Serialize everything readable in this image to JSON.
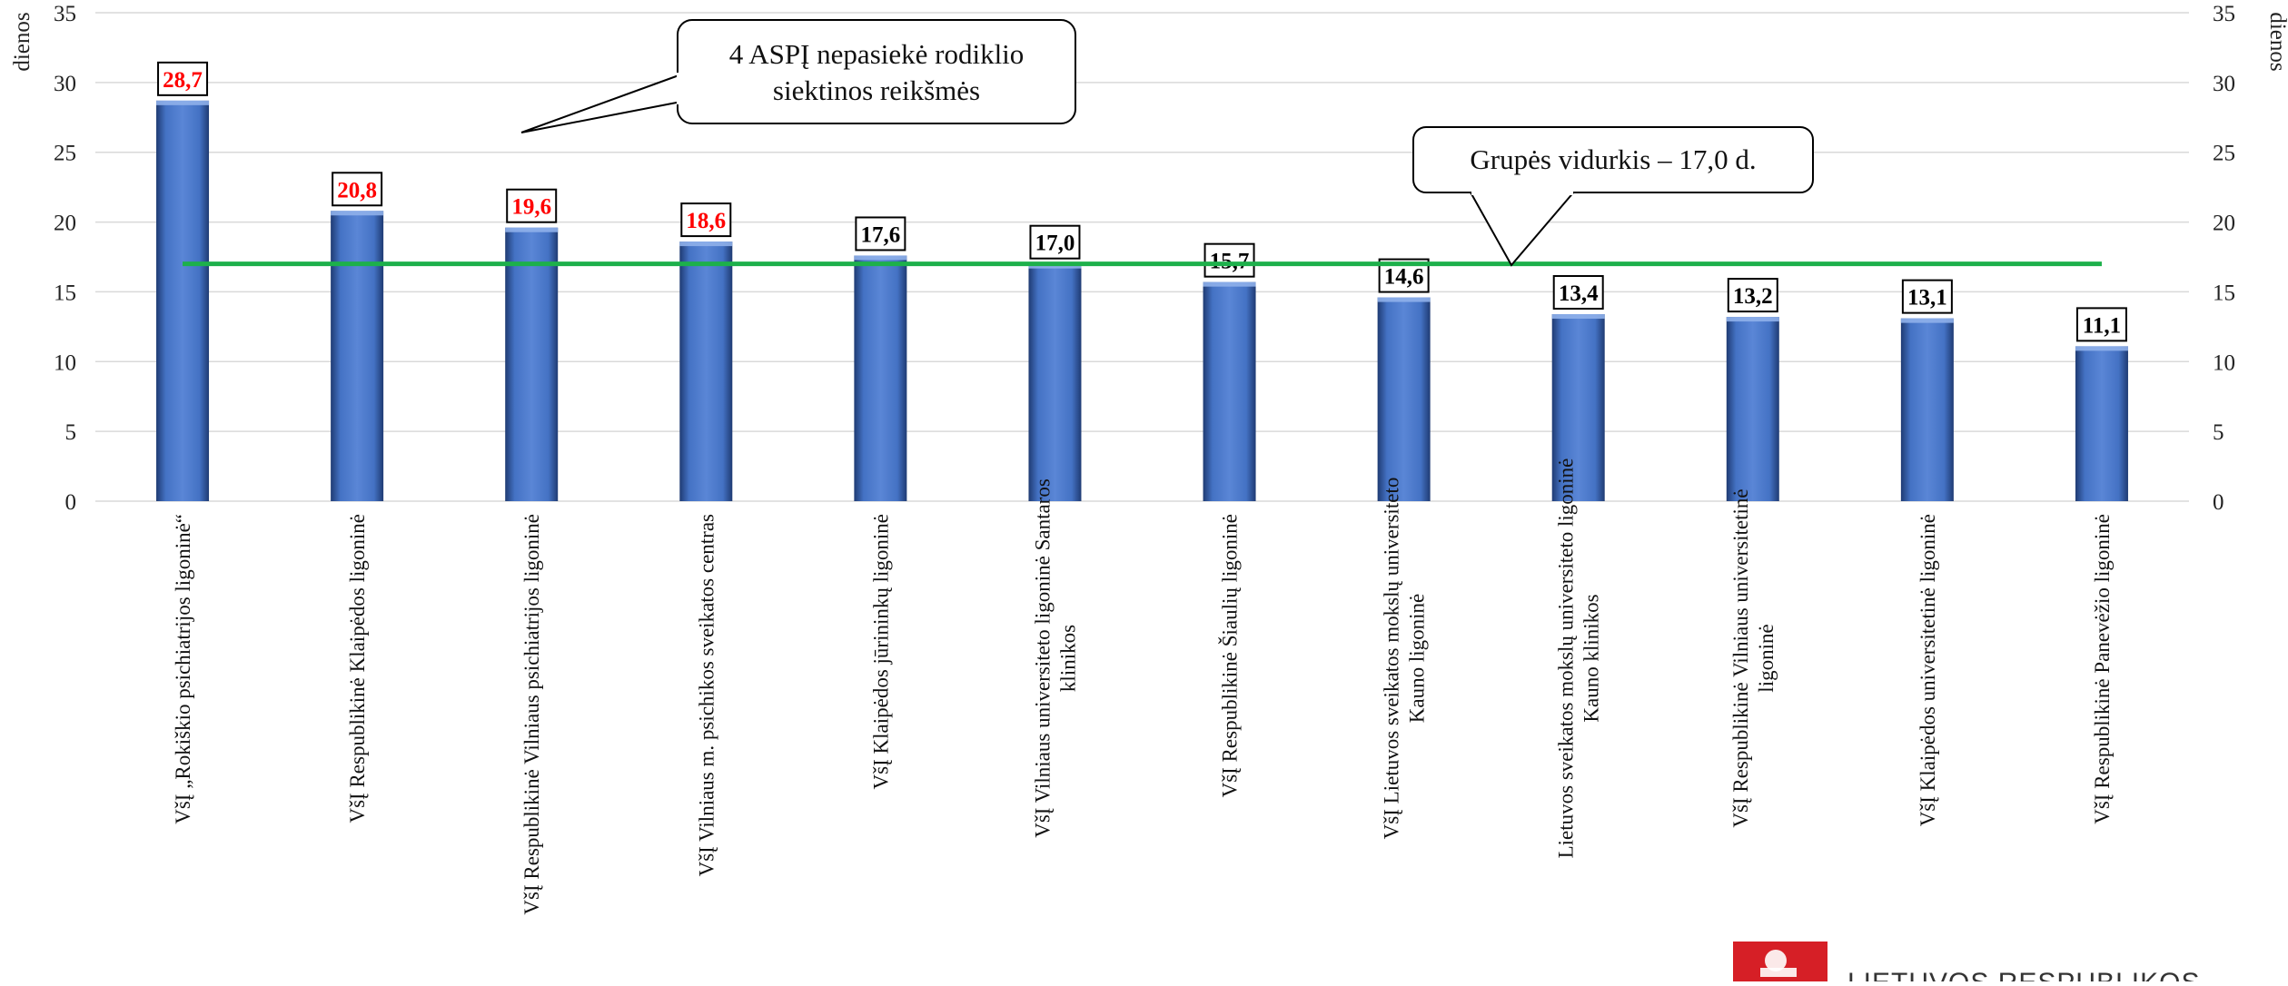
{
  "chart_data": {
    "type": "bar",
    "y_axis_label_left": "dienos",
    "y_axis_label_right": "dienos",
    "ylim": [
      0,
      35
    ],
    "yticks": [
      0,
      5,
      10,
      15,
      20,
      25,
      30,
      35
    ],
    "grid": true,
    "categories": [
      [
        "VšĮ „Rokiškio psichiatrijos ligoninė“"
      ],
      [
        "VšĮ Respublikinė Klaipėdos ligoninė"
      ],
      [
        "VšĮ Respublikinė Vilniaus psichiatrijos ligoninė"
      ],
      [
        "VšĮ Vilniaus m. psichikos sveikatos centras"
      ],
      [
        "VšĮ Klaipėdos jūrininkų ligoninė"
      ],
      [
        "VšĮ Vilniaus universiteto ligoninė Santaros",
        "klinikos"
      ],
      [
        "VšĮ Respublikinė Šiaulių ligoninė"
      ],
      [
        "VšĮ Lietuvos sveikatos mokslų universiteto",
        "Kauno ligoninė"
      ],
      [
        "Lietuvos sveikatos mokslų universiteto ligoninė",
        "Kauno klinikos"
      ],
      [
        "VšĮ Respublikinė Vilniaus universitetinė",
        "ligoninė"
      ],
      [
        "VšĮ Klaipėdos universitetinė ligoninė"
      ],
      [
        "VšĮ Respublikinė Panevėžio ligoninė"
      ]
    ],
    "values": [
      28.7,
      20.8,
      19.6,
      18.6,
      17.6,
      17.0,
      15.7,
      14.6,
      13.4,
      13.2,
      13.1,
      11.1
    ],
    "data_labels": [
      "28,7",
      "20,8",
      "19,6",
      "18,6",
      "17,6",
      "17,0",
      "15,7",
      "14,6",
      "13,4",
      "13,2",
      "13,1",
      "11,1"
    ],
    "highlighted": [
      true,
      true,
      true,
      true,
      false,
      false,
      false,
      false,
      false,
      false,
      false,
      false
    ],
    "reference_line": {
      "value": 17.0
    },
    "colors": {
      "bar": "#4472C4",
      "bar_dark": "#1f3b73",
      "average_line": "#1DB04B",
      "highlight_label": "#FF0000",
      "normal_label": "#000000",
      "grid": "#d9d9d9"
    },
    "annotations": [
      {
        "text_lines": [
          "4 ASPĮ nepasiekė rodiklio",
          "siektinos reikšmės"
        ]
      },
      {
        "text_lines": [
          "Grupės vidurkis – 17,0 d."
        ]
      }
    ]
  },
  "logo": {
    "text": "LIETUVOS RESPUBLIKOS",
    "icon": "lithuania-coat-of-arms-icon"
  }
}
